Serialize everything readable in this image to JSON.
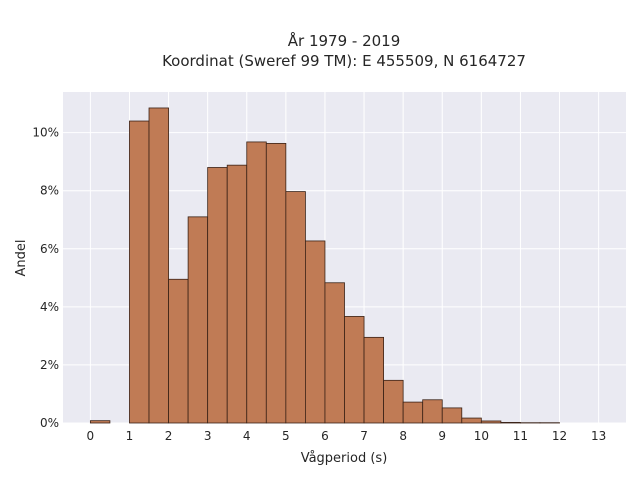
{
  "chart_data": {
    "type": "bar",
    "title": "År 1979 - 2019",
    "subtitle": "Koordinat (Sweref 99 TM): E 455509, N 6164727",
    "xlabel": "Vågperiod (s)",
    "ylabel": "Andel",
    "bin_width": 0.5,
    "bins": [
      {
        "start": 0.0,
        "value": 0.08
      },
      {
        "start": 1.0,
        "value": 10.4
      },
      {
        "start": 1.5,
        "value": 10.85
      },
      {
        "start": 2.0,
        "value": 4.95
      },
      {
        "start": 2.5,
        "value": 7.1
      },
      {
        "start": 3.0,
        "value": 8.8
      },
      {
        "start": 3.5,
        "value": 8.88
      },
      {
        "start": 4.0,
        "value": 9.68
      },
      {
        "start": 4.5,
        "value": 9.63
      },
      {
        "start": 5.0,
        "value": 7.97
      },
      {
        "start": 5.5,
        "value": 6.27
      },
      {
        "start": 6.0,
        "value": 4.83
      },
      {
        "start": 6.5,
        "value": 3.67
      },
      {
        "start": 7.0,
        "value": 2.95
      },
      {
        "start": 7.5,
        "value": 1.47
      },
      {
        "start": 8.0,
        "value": 0.72
      },
      {
        "start": 8.5,
        "value": 0.8
      },
      {
        "start": 9.0,
        "value": 0.52
      },
      {
        "start": 9.5,
        "value": 0.17
      },
      {
        "start": 10.0,
        "value": 0.07
      },
      {
        "start": 10.5,
        "value": 0.02
      },
      {
        "start": 11.0,
        "value": 0.01
      },
      {
        "start": 11.5,
        "value": 0.01
      }
    ],
    "xticks": [
      "0",
      "1",
      "2",
      "3",
      "4",
      "5",
      "6",
      "7",
      "8",
      "9",
      "10",
      "11",
      "12",
      "13"
    ],
    "yticks": [
      "0%",
      "2%",
      "4%",
      "6%",
      "8%",
      "10%"
    ],
    "xlim": [
      -0.7,
      13.7
    ],
    "ylim": [
      0,
      11.4
    ],
    "grid": true,
    "colors": {
      "bar": "#c07b55",
      "background": "#eaeaf2",
      "grid": "#ffffff"
    }
  }
}
